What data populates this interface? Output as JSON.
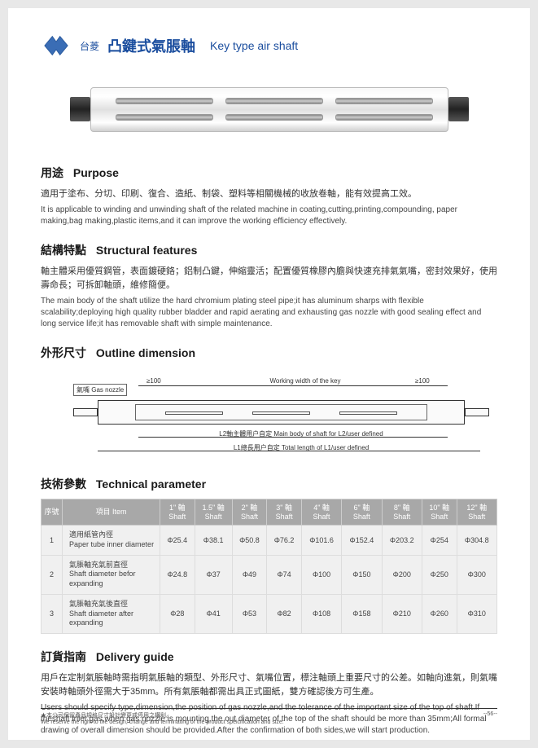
{
  "header": {
    "brand": "台菱",
    "title_cn": "凸鍵式氣脹軸",
    "title_en": "Key type air shaft"
  },
  "sections": {
    "purpose": {
      "title_cn": "用途",
      "title_en": "Purpose",
      "text_cn": "適用于塗布、分切、印刷、復合、造紙、制袋、塑料等相關機械的收放卷軸，能有效提高工效。",
      "text_en": "It is applicable to winding and unwinding shaft of the related machine in coating,cutting,printing,compounding, paper making,bag making,plastic items,and it can improve the working efficiency effectively."
    },
    "features": {
      "title_cn": "結構特點",
      "title_en": "Structural features",
      "text_cn": "軸主體采用優質鋼管，表面鍍硬鉻；鋁制凸鍵，伸縮靈活；配置優質橡膠內膽與快速充排氣氣嘴，密封效果好，使用壽命長；可拆卸軸頭，維修簡便。",
      "text_en": "The main body of the shaft utilize the hard chromium plating steel pipe;it has aluminum sharps with flexible scalability;deploying high quality rubber bladder and rapid aerating and exhausting gas nozzle with good sealing effect and long service life;it has removable shaft with simple maintenance."
    },
    "dimension": {
      "title_cn": "外形尺寸",
      "title_en": "Outline dimension"
    },
    "parameter": {
      "title_cn": "技術參數",
      "title_en": "Technical parameter"
    },
    "delivery": {
      "title_cn": "訂貨指南",
      "title_en": "Delivery guide",
      "text_cn": "用戶在定制氣脹軸時需指明氣脹軸的類型、外形尺寸、氣嘴位置，標注軸頭上重要尺寸的公差。如軸向進氣，則氣嘴安裝時軸頭外徑需大于35mm。所有氣脹軸都需出具正式圖紙，雙方確認後方可生產。",
      "text_en": "Users should specify type,dimension,the position of gas nozzle,and the tolerance of the important size of the top of shaft.If theshaft inlet gas,when gas nozzle is mounting,the out diameter of the top of the shaft should be more than 35mm;All formal drawing of overall dimension should be provided.After the confirmation of both sides,we will start production."
    }
  },
  "diagram": {
    "nozzle_label": "氣嘴 Gas nozzle",
    "dim_100_left": "≥100",
    "dim_working": "Working width of the key",
    "dim_100_right": "≥100",
    "dim_l2": "L2軸主體用户自定 Main body of shaft for L2/user defined",
    "dim_l1": "L1總長用户自定  Total length of L1/user defined"
  },
  "table": {
    "headers": {
      "seq": "序號",
      "item": "項目 Item",
      "cols": [
        "1\" 軸 Shaft",
        "1.5\" 軸 Shaft",
        "2\" 軸 Shaft",
        "3\" 軸 Shaft",
        "4\" 軸 Shaft",
        "6\" 軸 Shaft",
        "8\" 軸 Shaft",
        "10\" 軸 Shaft",
        "12\" 軸 Shaft"
      ]
    },
    "rows": [
      {
        "seq": "1",
        "item_cn": "適用紙管內徑",
        "item_en": "Paper tube inner diameter",
        "values": [
          "Φ25.4",
          "Φ38.1",
          "Φ50.8",
          "Φ76.2",
          "Φ101.6",
          "Φ152.4",
          "Φ203.2",
          "Φ254",
          "Φ304.8"
        ]
      },
      {
        "seq": "2",
        "item_cn": "氣脹軸充氣前直徑",
        "item_en": "Shaft diameter befor expanding",
        "values": [
          "Φ24.8",
          "Φ37",
          "Φ49",
          "Φ74",
          "Φ100",
          "Φ150",
          "Φ200",
          "Φ250",
          "Φ300"
        ]
      },
      {
        "seq": "3",
        "item_cn": "氣脹軸充氣後直徑",
        "item_en": "Shaft diameter after expanding",
        "values": [
          "Φ28",
          "Φ41",
          "Φ53",
          "Φ82",
          "Φ108",
          "Φ158",
          "Φ210",
          "Φ260",
          "Φ310"
        ]
      }
    ]
  },
  "footer": {
    "note_cn": "★本公司保留產品規格尺寸設計變更或停用之權利。",
    "note_en": "We reserve the right to the design, change and terminating of the product speicification and size.",
    "page": "--56--"
  }
}
